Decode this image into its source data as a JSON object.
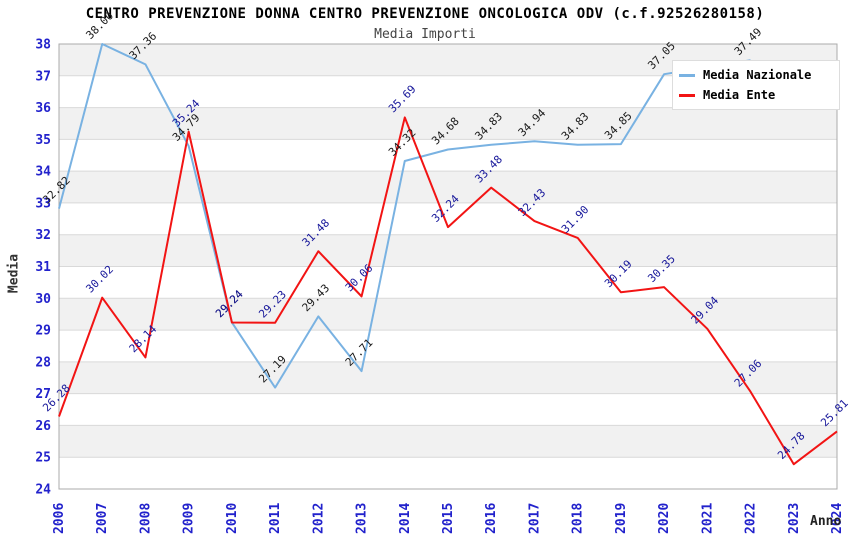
{
  "chart_data": {
    "type": "line",
    "title": "CENTRO PREVENZIONE DONNA CENTRO PREVENZIONE ONCOLOGICA ODV (c.f.92526280158)",
    "subtitle": "Media Importi",
    "xlabel": "Anno",
    "ylabel": "Media",
    "x": [
      2006,
      2007,
      2008,
      2009,
      2010,
      2011,
      2012,
      2013,
      2014,
      2015,
      2016,
      2017,
      2018,
      2019,
      2020,
      2021,
      2022,
      2023,
      2024
    ],
    "ylim": [
      24,
      38
    ],
    "ytick_step": 1,
    "grid": "alternating horizontal gray bands, one unit tall",
    "legend_position": "top-right",
    "series": [
      {
        "name": "Media Nazionale",
        "color": "#79b2e2",
        "label_color": "#1a1a1a",
        "values": [
          32.82,
          38.0,
          37.36,
          34.79,
          29.24,
          27.19,
          29.43,
          27.71,
          34.32,
          34.68,
          34.83,
          34.94,
          34.83,
          34.85,
          37.05,
          null,
          37.49,
          null,
          null
        ]
      },
      {
        "name": "Media Ente",
        "color": "#f21414",
        "label_color": "#17179a",
        "values": [
          26.28,
          30.02,
          28.14,
          35.24,
          29.24,
          29.23,
          31.48,
          30.06,
          35.69,
          32.24,
          33.48,
          32.43,
          31.9,
          30.19,
          30.35,
          29.04,
          27.06,
          24.78,
          25.81
        ]
      }
    ],
    "colors": {
      "tick_label": "#2222cc",
      "band_fill": "#f1f1f1",
      "grid_line": "#d9d9d9",
      "plot_border": "#ababab"
    }
  }
}
